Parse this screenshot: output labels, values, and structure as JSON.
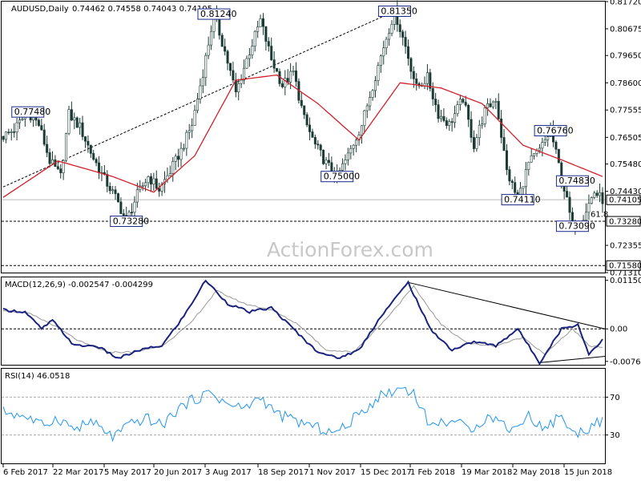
{
  "chart_data": {
    "type": "candlestick",
    "symbol_header": "AUDUSD,Daily",
    "ohlc_header": "0.74462 0.74558 0.74043 0.74105",
    "last_price": "0.74105",
    "watermark": "ActionForex.com",
    "x_ticks": [
      "6 Feb 2017",
      "22 Mar 2017",
      "5 May 2017",
      "20 Jun 2017",
      "3 Aug 2017",
      "18 Sep 2017",
      "1 Nov 2017",
      "15 Dec 2017",
      "1 Feb 2018",
      "19 Mar 2018",
      "2 May 2018",
      "15 Jun 2018"
    ],
    "price_panel": {
      "y_ticks": [
        "0.81720",
        "0.80675",
        "0.79650",
        "0.78600",
        "0.77555",
        "0.76505",
        "0.75480",
        "0.74430",
        "0.72355",
        "0.71310"
      ],
      "ylim": [
        0.7131,
        0.8172
      ],
      "price_path": [
        [
          0,
          0.7655
        ],
        [
          4,
          0.768
        ],
        [
          9,
          0.7748
        ],
        [
          13,
          0.77
        ],
        [
          17,
          0.756
        ],
        [
          21,
          0.75
        ],
        [
          24,
          0.774
        ],
        [
          28,
          0.769
        ],
        [
          33,
          0.757
        ],
        [
          37,
          0.749
        ],
        [
          41,
          0.742
        ],
        [
          45,
          0.7328
        ],
        [
          49,
          0.743
        ],
        [
          53,
          0.75
        ],
        [
          57,
          0.745
        ],
        [
          61,
          0.752
        ],
        [
          65,
          0.76
        ],
        [
          69,
          0.77
        ],
        [
          73,
          0.79
        ],
        [
          77,
          0.8124
        ],
        [
          81,
          0.798
        ],
        [
          85,
          0.782
        ],
        [
          89,
          0.795
        ],
        [
          94,
          0.81
        ],
        [
          98,
          0.795
        ],
        [
          102,
          0.785
        ],
        [
          106,
          0.79
        ],
        [
          110,
          0.772
        ],
        [
          114,
          0.762
        ],
        [
          118,
          0.755
        ],
        [
          122,
          0.75
        ],
        [
          126,
          0.758
        ],
        [
          131,
          0.77
        ],
        [
          135,
          0.785
        ],
        [
          139,
          0.8
        ],
        [
          143,
          0.8135
        ],
        [
          147,
          0.8
        ],
        [
          151,
          0.784
        ],
        [
          155,
          0.788
        ],
        [
          159,
          0.774
        ],
        [
          163,
          0.77
        ],
        [
          168,
          0.78
        ],
        [
          172,
          0.762
        ],
        [
          176,
          0.775
        ],
        [
          180,
          0.78
        ],
        [
          184,
          0.752
        ],
        [
          188,
          0.7411
        ],
        [
          192,
          0.755
        ],
        [
          196,
          0.76
        ],
        [
          200,
          0.7676
        ],
        [
          204,
          0.75
        ],
        [
          208,
          0.7309
        ],
        [
          212,
          0.735
        ],
        [
          216,
          0.744
        ],
        [
          219,
          0.7411
        ]
      ],
      "ma_path": [
        [
          0,
          0.742
        ],
        [
          20,
          0.756
        ],
        [
          40,
          0.75
        ],
        [
          55,
          0.744
        ],
        [
          70,
          0.758
        ],
        [
          85,
          0.787
        ],
        [
          100,
          0.789
        ],
        [
          115,
          0.778
        ],
        [
          130,
          0.764
        ],
        [
          145,
          0.786
        ],
        [
          160,
          0.784
        ],
        [
          175,
          0.778
        ],
        [
          190,
          0.762
        ],
        [
          205,
          0.756
        ],
        [
          219,
          0.75
        ]
      ],
      "ma_index_range": [
        0,
        219
      ],
      "hlines": [
        {
          "value": 0.7328,
          "style": "dashed"
        },
        {
          "value": 0.7158,
          "style": "dashed"
        },
        {
          "value": 0.7411,
          "style": "solid"
        }
      ],
      "trendlines": [
        {
          "from": [
            0,
            0.746
          ],
          "to": [
            143,
            0.8135
          ]
        }
      ],
      "annotations": [
        {
          "text": "0.81240",
          "index": 77,
          "value": 0.8124
        },
        {
          "text": "0.81350",
          "index": 143,
          "value": 0.8135
        },
        {
          "text": "0.77480",
          "index": 9,
          "value": 0.7748
        },
        {
          "text": "0.76760",
          "index": 200,
          "value": 0.7676
        },
        {
          "text": "0.75000",
          "index": 122,
          "value": 0.75
        },
        {
          "text": "0.74830",
          "index": 208,
          "value": 0.7483
        },
        {
          "text": "0.74110",
          "index": 188,
          "value": 0.7411
        },
        {
          "text": "0.73280",
          "index": 45,
          "value": 0.7328
        },
        {
          "text": "0.73090",
          "index": 208,
          "value": 0.7309
        }
      ],
      "right_labels": [
        "0.74105",
        "0.73280",
        "0.71580"
      ],
      "fib_label": "61.8"
    },
    "macd_panel": {
      "header": "MACD(12,26,9) -0.002547 -0.004299",
      "y_ticks": [
        "0.011508",
        "0.00",
        "-0.007694"
      ],
      "ylim": [
        -0.0085,
        0.0122
      ],
      "macd_path": [
        [
          0,
          0.0045
        ],
        [
          8,
          0.004
        ],
        [
          14,
          0.0
        ],
        [
          18,
          0.002
        ],
        [
          26,
          -0.004
        ],
        [
          34,
          -0.004
        ],
        [
          42,
          -0.007
        ],
        [
          50,
          -0.005
        ],
        [
          58,
          -0.004
        ],
        [
          66,
          0.003
        ],
        [
          74,
          0.0115
        ],
        [
          82,
          0.006
        ],
        [
          90,
          0.004
        ],
        [
          98,
          0.005
        ],
        [
          106,
          0.0
        ],
        [
          114,
          -0.005
        ],
        [
          122,
          -0.007
        ],
        [
          130,
          -0.005
        ],
        [
          138,
          0.003
        ],
        [
          148,
          0.011
        ],
        [
          156,
          0.0
        ],
        [
          164,
          -0.005
        ],
        [
          172,
          -0.003
        ],
        [
          180,
          -0.004
        ],
        [
          188,
          0.0
        ],
        [
          196,
          -0.008
        ],
        [
          204,
          0.0
        ],
        [
          210,
          0.001
        ],
        [
          214,
          -0.006
        ],
        [
          219,
          -0.0025
        ]
      ],
      "signal_path": [
        [
          0,
          0.0045
        ],
        [
          10,
          0.0035
        ],
        [
          18,
          0.001
        ],
        [
          28,
          -0.003
        ],
        [
          38,
          -0.0055
        ],
        [
          48,
          -0.0055
        ],
        [
          58,
          -0.004
        ],
        [
          68,
          0.001
        ],
        [
          78,
          0.009
        ],
        [
          88,
          0.006
        ],
        [
          98,
          0.0045
        ],
        [
          108,
          0.001
        ],
        [
          118,
          -0.005
        ],
        [
          128,
          -0.0055
        ],
        [
          138,
          0.001
        ],
        [
          150,
          0.01
        ],
        [
          160,
          0.001
        ],
        [
          170,
          -0.0035
        ],
        [
          180,
          -0.004
        ],
        [
          190,
          -0.002
        ],
        [
          198,
          -0.006
        ],
        [
          208,
          0.0
        ],
        [
          214,
          -0.004
        ],
        [
          219,
          -0.0043
        ]
      ],
      "trendlines": [
        {
          "from": [
            148,
            0.011
          ],
          "to": [
            219,
            0.0
          ]
        },
        {
          "from": [
            196,
            -0.008
          ],
          "to": [
            219,
            -0.0065
          ]
        }
      ]
    },
    "rsi_panel": {
      "header": "RSI(14) 46.0518",
      "y_ticks": [
        "70",
        "30"
      ],
      "ylim": [
        0,
        100
      ],
      "levels": [
        70,
        30
      ],
      "rsi_path": [
        [
          0,
          55
        ],
        [
          8,
          50
        ],
        [
          14,
          40
        ],
        [
          20,
          48
        ],
        [
          26,
          36
        ],
        [
          32,
          44
        ],
        [
          40,
          28
        ],
        [
          46,
          40
        ],
        [
          52,
          48
        ],
        [
          58,
          40
        ],
        [
          64,
          58
        ],
        [
          70,
          68
        ],
        [
          76,
          75
        ],
        [
          82,
          62
        ],
        [
          88,
          58
        ],
        [
          94,
          70
        ],
        [
          100,
          52
        ],
        [
          108,
          44
        ],
        [
          114,
          38
        ],
        [
          122,
          32
        ],
        [
          130,
          52
        ],
        [
          138,
          72
        ],
        [
          146,
          80
        ],
        [
          150,
          75
        ],
        [
          156,
          40
        ],
        [
          164,
          46
        ],
        [
          170,
          36
        ],
        [
          178,
          50
        ],
        [
          186,
          36
        ],
        [
          192,
          50
        ],
        [
          198,
          36
        ],
        [
          204,
          52
        ],
        [
          208,
          30
        ],
        [
          214,
          38
        ],
        [
          219,
          46
        ]
      ]
    }
  }
}
